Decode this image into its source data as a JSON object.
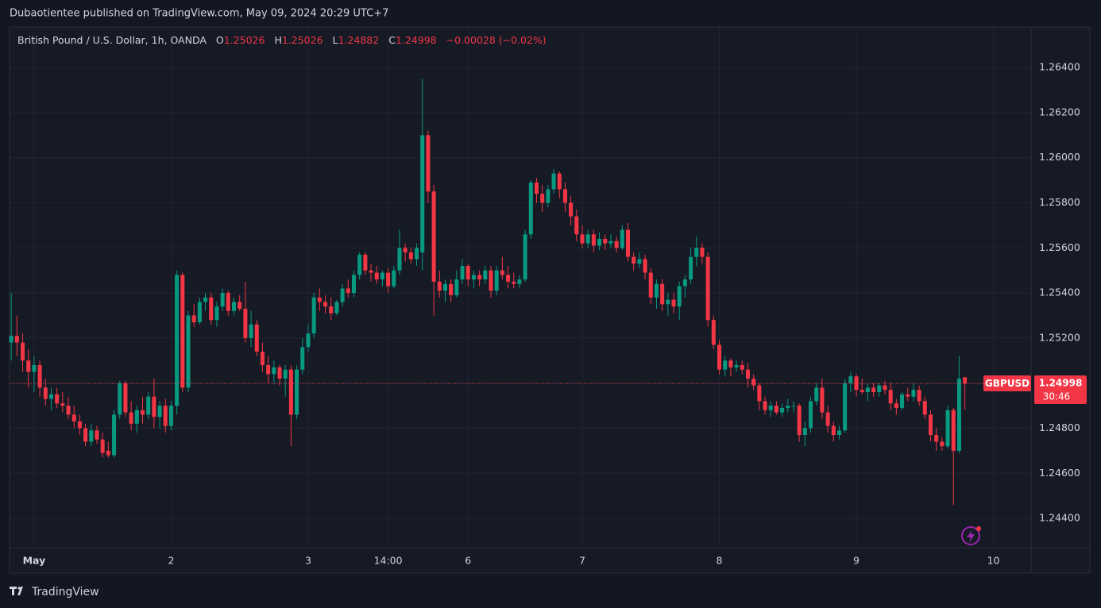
{
  "header": {
    "publisher": "Dubaotientee published on TradingView.com, May 09, 2024 20:29 UTC+7"
  },
  "legend": {
    "symbol": "British Pound / U.S. Dollar, 1h, OANDA",
    "o": "O",
    "open": "1.25026",
    "h": "H",
    "high": "1.25026",
    "l": "L",
    "low": "1.24882",
    "c": "C",
    "close": "1.24998",
    "change": "−0.00028 (−0.02%)"
  },
  "price_tag": {
    "symbol": "GBPUSD",
    "price": "1.24998",
    "countdown": "30:46"
  },
  "footer": {
    "brand": "TradingView"
  },
  "chart_data": {
    "type": "candlestick",
    "up_color": "#089981",
    "down_color": "#f23645",
    "grid": true,
    "xlim": [
      -0.3,
      178.6
    ],
    "xticks": [
      {
        "value": 4,
        "label": "May"
      },
      {
        "value": 28,
        "label": "2"
      },
      {
        "value": 52,
        "label": "3"
      },
      {
        "value": 66,
        "label": "14:00"
      },
      {
        "value": 80,
        "label": "6"
      },
      {
        "value": 100,
        "label": "7"
      },
      {
        "value": 124,
        "label": "8"
      },
      {
        "value": 148,
        "label": "9"
      },
      {
        "value": 172,
        "label": "10"
      }
    ],
    "ylim": [
      1.2427,
      1.2658
    ],
    "yticks": [
      {
        "value": 1.244,
        "label": "1.24400"
      },
      {
        "value": 1.246,
        "label": "1.24600"
      },
      {
        "value": 1.248,
        "label": "1.24800"
      },
      {
        "value": 1.25,
        "label": "1.25000"
      },
      {
        "value": 1.252,
        "label": "1.25200"
      },
      {
        "value": 1.254,
        "label": "1.25400"
      },
      {
        "value": 1.256,
        "label": "1.25600"
      },
      {
        "value": 1.258,
        "label": "1.25800"
      },
      {
        "value": 1.26,
        "label": "1.26000"
      },
      {
        "value": 1.262,
        "label": "1.26200"
      },
      {
        "value": 1.264,
        "label": "1.26400"
      }
    ],
    "candles": [
      [
        1.2518,
        1.254,
        1.251,
        1.2521
      ],
      [
        1.2521,
        1.253,
        1.2512,
        1.2518
      ],
      [
        1.2518,
        1.2522,
        1.2505,
        1.251
      ],
      [
        1.251,
        1.2515,
        1.2498,
        1.2505
      ],
      [
        1.2505,
        1.2512,
        1.2496,
        1.2508
      ],
      [
        1.2508,
        1.251,
        1.2494,
        1.2498
      ],
      [
        1.2498,
        1.2502,
        1.249,
        1.2493
      ],
      [
        1.2493,
        1.2498,
        1.2488,
        1.2495
      ],
      [
        1.2495,
        1.2498,
        1.2489,
        1.2491
      ],
      [
        1.2491,
        1.2496,
        1.2487,
        1.249
      ],
      [
        1.249,
        1.2494,
        1.2484,
        1.2486
      ],
      [
        1.2486,
        1.249,
        1.248,
        1.2483
      ],
      [
        1.2483,
        1.2486,
        1.2477,
        1.248
      ],
      [
        1.248,
        1.2482,
        1.2472,
        1.2474
      ],
      [
        1.2474,
        1.2482,
        1.2472,
        1.2479
      ],
      [
        1.2479,
        1.2481,
        1.2473,
        1.2475
      ],
      [
        1.2475,
        1.2478,
        1.2467,
        1.2469
      ],
      [
        1.247,
        1.2474,
        1.2467,
        1.2468
      ],
      [
        1.2468,
        1.2488,
        1.2467,
        1.2486
      ],
      [
        1.2486,
        1.2501,
        1.2484,
        1.25
      ],
      [
        1.25,
        1.2501,
        1.2485,
        1.2487
      ],
      [
        1.2487,
        1.2492,
        1.2479,
        1.2482
      ],
      [
        1.2482,
        1.249,
        1.2478,
        1.2488
      ],
      [
        1.2488,
        1.2494,
        1.2482,
        1.2486
      ],
      [
        1.2486,
        1.2496,
        1.2484,
        1.2494
      ],
      [
        1.2494,
        1.2502,
        1.248,
        1.2485
      ],
      [
        1.2485,
        1.2492,
        1.248,
        1.249
      ],
      [
        1.249,
        1.2493,
        1.2478,
        1.2481
      ],
      [
        1.2481,
        1.2492,
        1.2479,
        1.249
      ],
      [
        1.249,
        1.255,
        1.2486,
        1.2548
      ],
      [
        1.2548,
        1.2549,
        1.2496,
        1.2498
      ],
      [
        1.2498,
        1.2532,
        1.2496,
        1.253
      ],
      [
        1.253,
        1.2535,
        1.2525,
        1.2527
      ],
      [
        1.2527,
        1.2538,
        1.2526,
        1.2536
      ],
      [
        1.2536,
        1.254,
        1.2532,
        1.2538
      ],
      [
        1.2538,
        1.254,
        1.2526,
        1.2528
      ],
      [
        1.2528,
        1.2536,
        1.2525,
        1.2534
      ],
      [
        1.2534,
        1.2542,
        1.2532,
        1.254
      ],
      [
        1.254,
        1.2541,
        1.253,
        1.2532
      ],
      [
        1.2532,
        1.2538,
        1.253,
        1.2536
      ],
      [
        1.2536,
        1.2539,
        1.2532,
        1.2533
      ],
      [
        1.2533,
        1.2545,
        1.2518,
        1.252
      ],
      [
        1.252,
        1.2532,
        1.2516,
        1.2526
      ],
      [
        1.2526,
        1.2528,
        1.2512,
        1.2514
      ],
      [
        1.2514,
        1.2518,
        1.2505,
        1.2508
      ],
      [
        1.2508,
        1.2512,
        1.25,
        1.2504
      ],
      [
        1.2504,
        1.251,
        1.25,
        1.2507
      ],
      [
        1.2507,
        1.2508,
        1.2499,
        1.2502
      ],
      [
        1.2502,
        1.2508,
        1.2494,
        1.2506
      ],
      [
        1.2506,
        1.2508,
        1.2472,
        1.2486
      ],
      [
        1.2486,
        1.2508,
        1.2484,
        1.2506
      ],
      [
        1.2506,
        1.252,
        1.2504,
        1.2516
      ],
      [
        1.2516,
        1.2526,
        1.2514,
        1.2522
      ],
      [
        1.2522,
        1.254,
        1.252,
        1.2538
      ],
      [
        1.2538,
        1.2542,
        1.2532,
        1.2536
      ],
      [
        1.2536,
        1.2539,
        1.2531,
        1.2534
      ],
      [
        1.2534,
        1.2538,
        1.2528,
        1.2531
      ],
      [
        1.2531,
        1.2537,
        1.253,
        1.2536
      ],
      [
        1.2536,
        1.2544,
        1.2534,
        1.2542
      ],
      [
        1.2542,
        1.2546,
        1.2538,
        1.254
      ],
      [
        1.254,
        1.255,
        1.2538,
        1.2548
      ],
      [
        1.2548,
        1.2558,
        1.2546,
        1.2557
      ],
      [
        1.2557,
        1.2558,
        1.2548,
        1.255
      ],
      [
        1.255,
        1.2553,
        1.2545,
        1.2549
      ],
      [
        1.2549,
        1.2552,
        1.2544,
        1.2546
      ],
      [
        1.2546,
        1.255,
        1.2543,
        1.2549
      ],
      [
        1.2549,
        1.2551,
        1.254,
        1.2543
      ],
      [
        1.2543,
        1.2552,
        1.2542,
        1.255
      ],
      [
        1.255,
        1.2568,
        1.2548,
        1.256
      ],
      [
        1.256,
        1.2562,
        1.2554,
        1.2558
      ],
      [
        1.2558,
        1.256,
        1.2553,
        1.2555
      ],
      [
        1.2555,
        1.2562,
        1.2552,
        1.256
      ],
      [
        1.2558,
        1.2635,
        1.255,
        1.261
      ],
      [
        1.261,
        1.2612,
        1.258,
        1.2585
      ],
      [
        1.2585,
        1.2588,
        1.253,
        1.2545
      ],
      [
        1.2545,
        1.255,
        1.2538,
        1.2541
      ],
      [
        1.2541,
        1.2546,
        1.2536,
        1.2544
      ],
      [
        1.2544,
        1.2546,
        1.2536,
        1.2539
      ],
      [
        1.2539,
        1.255,
        1.2538,
        1.2546
      ],
      [
        1.2546,
        1.2555,
        1.2544,
        1.2552
      ],
      [
        1.2552,
        1.2553,
        1.2543,
        1.2546
      ],
      [
        1.2546,
        1.255,
        1.2542,
        1.2548
      ],
      [
        1.2548,
        1.255,
        1.2543,
        1.2546
      ],
      [
        1.2546,
        1.2552,
        1.2544,
        1.255
      ],
      [
        1.255,
        1.2552,
        1.2538,
        1.2541
      ],
      [
        1.2541,
        1.2552,
        1.2539,
        1.255
      ],
      [
        1.255,
        1.2556,
        1.2546,
        1.2548
      ],
      [
        1.2548,
        1.2552,
        1.2542,
        1.2545
      ],
      [
        1.2545,
        1.2549,
        1.2542,
        1.2544
      ],
      [
        1.2544,
        1.2548,
        1.2542,
        1.2546
      ],
      [
        1.2546,
        1.2568,
        1.2545,
        1.2566
      ],
      [
        1.2566,
        1.259,
        1.2564,
        1.2589
      ],
      [
        1.2589,
        1.2591,
        1.258,
        1.2584
      ],
      [
        1.2584,
        1.2588,
        1.2576,
        1.258
      ],
      [
        1.258,
        1.2588,
        1.2578,
        1.2586
      ],
      [
        1.2586,
        1.2595,
        1.2584,
        1.2593
      ],
      [
        1.2593,
        1.2594,
        1.2582,
        1.2586
      ],
      [
        1.2586,
        1.2589,
        1.2576,
        1.258
      ],
      [
        1.258,
        1.2583,
        1.257,
        1.2574
      ],
      [
        1.2574,
        1.2577,
        1.2563,
        1.2566
      ],
      [
        1.2566,
        1.257,
        1.256,
        1.2562
      ],
      [
        1.2562,
        1.2568,
        1.256,
        1.2566
      ],
      [
        1.2566,
        1.2568,
        1.2558,
        1.2561
      ],
      [
        1.2561,
        1.2567,
        1.2559,
        1.2564
      ],
      [
        1.2564,
        1.2566,
        1.2559,
        1.2562
      ],
      [
        1.2562,
        1.2566,
        1.256,
        1.2563
      ],
      [
        1.2563,
        1.2565,
        1.2558,
        1.256
      ],
      [
        1.256,
        1.257,
        1.2559,
        1.2568
      ],
      [
        1.2568,
        1.2571,
        1.2554,
        1.2556
      ],
      [
        1.2556,
        1.2558,
        1.255,
        1.2553
      ],
      [
        1.2553,
        1.2558,
        1.2551,
        1.2555
      ],
      [
        1.2555,
        1.2557,
        1.2546,
        1.2549
      ],
      [
        1.2549,
        1.2551,
        1.2535,
        1.2538
      ],
      [
        1.2538,
        1.2546,
        1.2533,
        1.2544
      ],
      [
        1.2544,
        1.2546,
        1.2532,
        1.2535
      ],
      [
        1.2535,
        1.254,
        1.253,
        1.2537
      ],
      [
        1.2537,
        1.254,
        1.2531,
        1.2534
      ],
      [
        1.2534,
        1.2545,
        1.2528,
        1.2543
      ],
      [
        1.2543,
        1.2548,
        1.2538,
        1.2546
      ],
      [
        1.2546,
        1.256,
        1.2544,
        1.2556
      ],
      [
        1.2556,
        1.2565,
        1.2552,
        1.256
      ],
      [
        1.256,
        1.2562,
        1.2553,
        1.2556
      ],
      [
        1.2556,
        1.2558,
        1.2525,
        1.2528
      ],
      [
        1.2528,
        1.253,
        1.2515,
        1.2517
      ],
      [
        1.2517,
        1.2519,
        1.2504,
        1.2506
      ],
      [
        1.2506,
        1.2512,
        1.2503,
        1.251
      ],
      [
        1.251,
        1.2511,
        1.2503,
        1.2507
      ],
      [
        1.2507,
        1.251,
        1.2505,
        1.2508
      ],
      [
        1.2508,
        1.251,
        1.2504,
        1.2506
      ],
      [
        1.2506,
        1.2509,
        1.2498,
        1.2502
      ],
      [
        1.2502,
        1.2504,
        1.2497,
        1.2499
      ],
      [
        1.2499,
        1.25,
        1.2488,
        1.2492
      ],
      [
        1.2492,
        1.2494,
        1.2486,
        1.2488
      ],
      [
        1.2488,
        1.2492,
        1.2485,
        1.249
      ],
      [
        1.249,
        1.2492,
        1.2486,
        1.2487
      ],
      [
        1.2487,
        1.2491,
        1.2485,
        1.2489
      ],
      [
        1.2489,
        1.2493,
        1.2487,
        1.249
      ],
      [
        1.249,
        1.2492,
        1.2487,
        1.249
      ],
      [
        1.249,
        1.2491,
        1.2474,
        1.2477
      ],
      [
        1.2477,
        1.2483,
        1.2472,
        1.248
      ],
      [
        1.248,
        1.2494,
        1.2478,
        1.2492
      ],
      [
        1.2492,
        1.25,
        1.249,
        1.2498
      ],
      [
        1.2498,
        1.2502,
        1.2484,
        1.2487
      ],
      [
        1.2487,
        1.249,
        1.2478,
        1.2481
      ],
      [
        1.2481,
        1.2483,
        1.2474,
        1.2477
      ],
      [
        1.2477,
        1.2481,
        1.2475,
        1.2479
      ],
      [
        1.2479,
        1.2502,
        1.2478,
        1.25
      ],
      [
        1.25,
        1.2505,
        1.2496,
        1.2503
      ],
      [
        1.2503,
        1.2504,
        1.2494,
        1.2497
      ],
      [
        1.2497,
        1.2502,
        1.2495,
        1.2496
      ],
      [
        1.2496,
        1.25,
        1.2492,
        1.2498
      ],
      [
        1.2498,
        1.25,
        1.2494,
        1.2496
      ],
      [
        1.2496,
        1.25,
        1.2494,
        1.2499
      ],
      [
        1.2499,
        1.2501,
        1.2495,
        1.2497
      ],
      [
        1.2497,
        1.25,
        1.2488,
        1.2491
      ],
      [
        1.2491,
        1.2493,
        1.2486,
        1.2489
      ],
      [
        1.2489,
        1.2496,
        1.2488,
        1.2495
      ],
      [
        1.2495,
        1.2498,
        1.2492,
        1.2494
      ],
      [
        1.2494,
        1.25,
        1.2492,
        1.2497
      ],
      [
        1.2497,
        1.2499,
        1.249,
        1.2492
      ],
      [
        1.2492,
        1.2494,
        1.2484,
        1.2486
      ],
      [
        1.2486,
        1.2488,
        1.2474,
        1.2477
      ],
      [
        1.2477,
        1.248,
        1.247,
        1.2474
      ],
      [
        1.2474,
        1.2476,
        1.247,
        1.2472
      ],
      [
        1.2472,
        1.249,
        1.2471,
        1.2488
      ],
      [
        1.2488,
        1.2489,
        1.2446,
        1.247
      ],
      [
        1.247,
        1.2512,
        1.2469,
        1.2502
      ],
      [
        1.25026,
        1.25026,
        1.24882,
        1.24998
      ]
    ]
  }
}
